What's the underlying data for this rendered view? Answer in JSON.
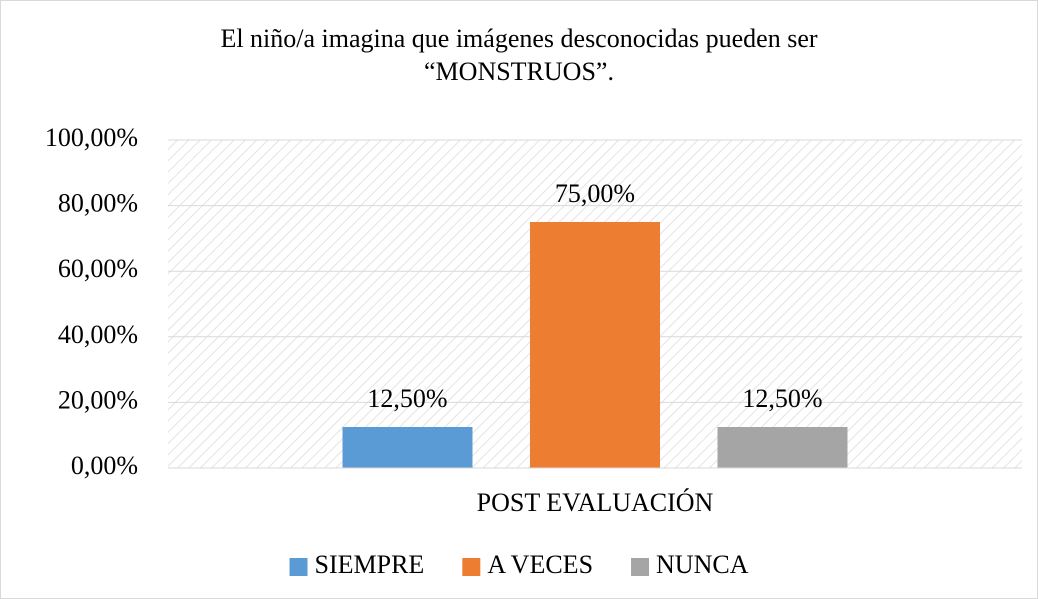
{
  "chart_data": {
    "type": "bar",
    "title": "El niño/a imagina que imágenes desconocidas pueden ser “MONSTRUOS”.",
    "categories": [
      "POST EVALUACIÓN"
    ],
    "series": [
      {
        "name": "SIEMPRE",
        "color": "#5b9bd5",
        "values": [
          12.5
        ],
        "value_labels": [
          "12,50%"
        ]
      },
      {
        "name": "A VECES",
        "color": "#ed7d31",
        "values": [
          75
        ],
        "value_labels": [
          "75,00%"
        ]
      },
      {
        "name": "NUNCA",
        "color": "#a5a5a5",
        "values": [
          12.5
        ],
        "value_labels": [
          "12,50%"
        ]
      }
    ],
    "ylim": [
      0,
      100
    ],
    "yticks": [
      {
        "value": 0,
        "label": "0,00%"
      },
      {
        "value": 20,
        "label": "20,00%"
      },
      {
        "value": 40,
        "label": "40,00%"
      },
      {
        "value": 60,
        "label": "60,00%"
      },
      {
        "value": 80,
        "label": "80,00%"
      },
      {
        "value": 100,
        "label": "100,00%"
      }
    ],
    "grid": true,
    "legend": "bottom"
  }
}
